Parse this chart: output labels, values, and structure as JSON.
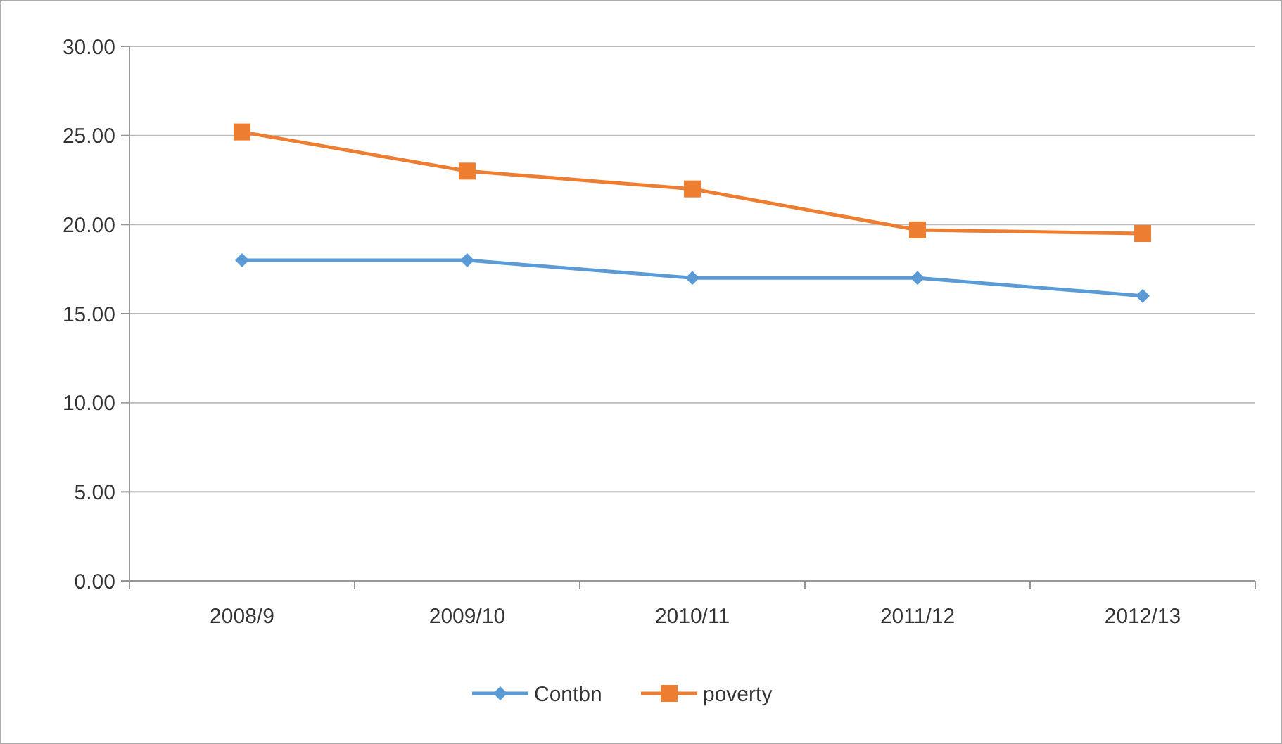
{
  "chart_data": {
    "type": "line",
    "categories": [
      "2008/9",
      "2009/10",
      "2010/11",
      "2011/12",
      "2012/13"
    ],
    "series": [
      {
        "name": "Contbn",
        "color": "#5b9bd5",
        "marker": "diamond",
        "values": [
          18.0,
          18.0,
          17.0,
          17.0,
          16.0
        ]
      },
      {
        "name": "poverty",
        "color": "#ed7d31",
        "marker": "square",
        "values": [
          25.2,
          23.0,
          22.0,
          19.7,
          19.5
        ]
      }
    ],
    "ylim": [
      0,
      30
    ],
    "yticks": [
      {
        "value": 0,
        "label": "0.00"
      },
      {
        "value": 5,
        "label": "5.00"
      },
      {
        "value": 10,
        "label": "10.00"
      },
      {
        "value": 15,
        "label": "15.00"
      },
      {
        "value": 20,
        "label": "20.00"
      },
      {
        "value": 25,
        "label": "25.00"
      },
      {
        "value": 30,
        "label": "30.00"
      }
    ],
    "grid": "y",
    "legend": "bottom"
  }
}
